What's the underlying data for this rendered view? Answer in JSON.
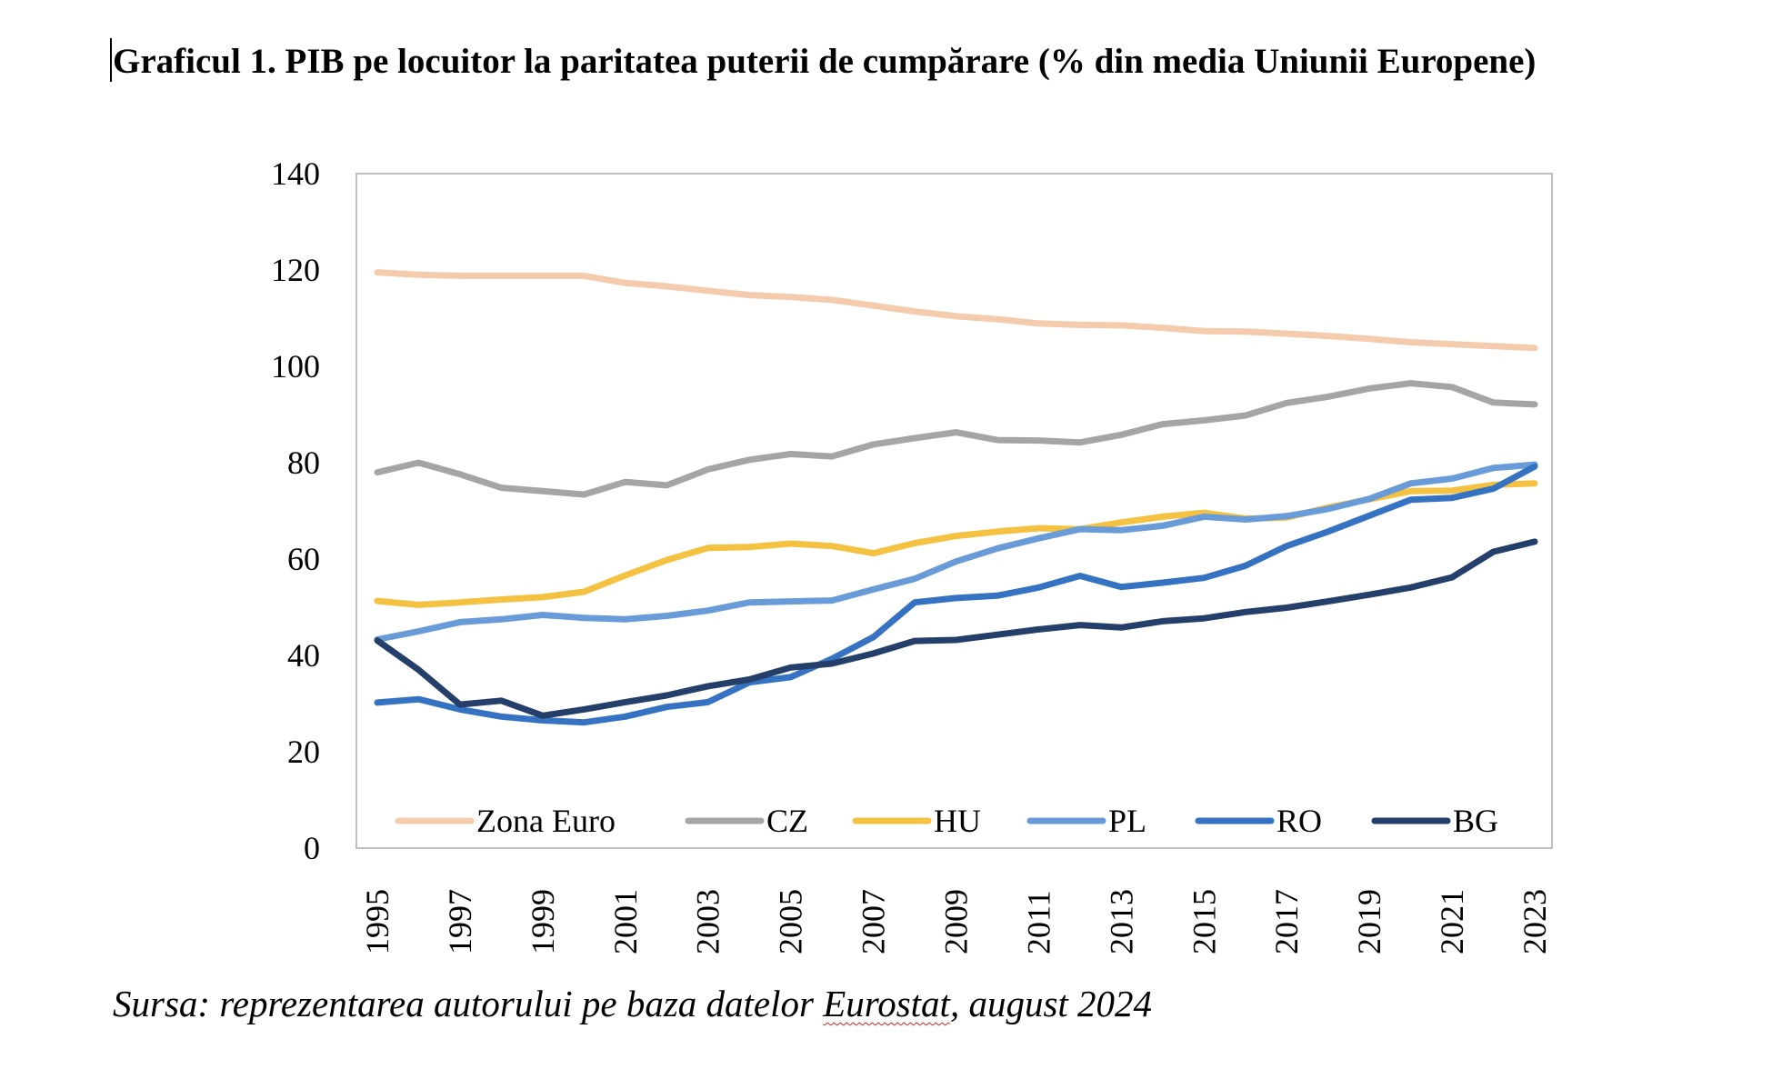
{
  "title": "Graficul 1. PIB pe locuitor la paritatea puterii de cumpărare (% din media Uniunii Europene)",
  "source": {
    "before": "Sursa: reprezentarea autorului pe baza datelor ",
    "highlight": "Eurostat",
    "after": ", august 2024"
  },
  "chart_data": {
    "type": "line",
    "title": "Graficul 1. PIB pe locuitor la paritatea puterii de cumpărare (% din media Uniunii Europene)",
    "ylim": [
      0,
      140
    ],
    "y_ticks": [
      0,
      20,
      40,
      60,
      80,
      100,
      120,
      140
    ],
    "x": [
      1995,
      1996,
      1997,
      1998,
      1999,
      2000,
      2001,
      2002,
      2003,
      2004,
      2005,
      2006,
      2007,
      2008,
      2009,
      2010,
      2011,
      2012,
      2013,
      2014,
      2015,
      2016,
      2017,
      2018,
      2019,
      2020,
      2021,
      2022,
      2023
    ],
    "x_tick_labels": [
      "1995",
      "1997",
      "1999",
      "2001",
      "2003",
      "2005",
      "2007",
      "2009",
      "2011",
      "2013",
      "2015",
      "2017",
      "2019",
      "2021",
      "2023"
    ],
    "grid": false,
    "legend_position": "bottom-inside",
    "series": [
      {
        "name": "Zona Euro",
        "color": "#F4CBAC",
        "values": [
          119.5,
          119,
          118.8,
          118.8,
          118.8,
          118.8,
          117.3,
          116.6,
          115.7,
          114.8,
          114.4,
          113.8,
          112.6,
          111.4,
          110.4,
          109.8,
          108.9,
          108.6,
          108.5,
          108,
          107.3,
          107.2,
          106.8,
          106.3,
          105.7,
          105,
          104.6,
          104.2,
          103.8
        ]
      },
      {
        "name": "CZ",
        "color": "#A5A5A5",
        "values": [
          78,
          80,
          77.6,
          74.8,
          74.1,
          73.4,
          76,
          75.3,
          78.6,
          80.6,
          81.8,
          81.3,
          83.8,
          85.1,
          86.3,
          84.7,
          84.6,
          84.2,
          85.8,
          88,
          88.8,
          89.8,
          92.4,
          93.7,
          95.4,
          96.5,
          95.7,
          92.5,
          92.1
        ]
      },
      {
        "name": "HU",
        "color": "#F5C140",
        "values": [
          51.3,
          50.5,
          51,
          51.6,
          52.1,
          53.2,
          56.6,
          59.8,
          62.3,
          62.5,
          63.2,
          62.7,
          61.2,
          63.3,
          64.8,
          65.7,
          66.4,
          66.2,
          67.6,
          68.8,
          69.6,
          68.4,
          68.6,
          70.7,
          72.4,
          74.1,
          74.2,
          75.4,
          75.7
        ]
      },
      {
        "name": "PL",
        "color": "#699BD8",
        "values": [
          43.3,
          45,
          46.9,
          47.5,
          48.4,
          47.8,
          47.5,
          48.2,
          49.3,
          51,
          51.2,
          51.4,
          53.7,
          55.9,
          59.5,
          62.2,
          64.3,
          66.2,
          66,
          66.9,
          68.8,
          68.2,
          68.9,
          70.4,
          72.5,
          75.7,
          76.7,
          78.9,
          79.6
        ]
      },
      {
        "name": "RO",
        "color": "#3572C2",
        "values": [
          30.2,
          30.9,
          28.8,
          27.3,
          26.5,
          26.1,
          27.3,
          29.3,
          30.3,
          34.4,
          35.5,
          39.3,
          43.8,
          51,
          51.9,
          52.4,
          54.1,
          56.5,
          54.2,
          55.1,
          56.1,
          58.6,
          62.7,
          65.7,
          69,
          72.3,
          72.7,
          74.6,
          79.2
        ]
      },
      {
        "name": "BG",
        "color": "#253F6B",
        "values": [
          43.1,
          37,
          29.8,
          30.6,
          27.5,
          28.8,
          30.3,
          31.7,
          33.6,
          35,
          37.5,
          38.3,
          40.4,
          43,
          43.2,
          44.3,
          45.4,
          46.3,
          45.8,
          47.1,
          47.7,
          49,
          49.9,
          51.2,
          52.6,
          54.1,
          56.2,
          61.5,
          63.6
        ]
      }
    ]
  }
}
